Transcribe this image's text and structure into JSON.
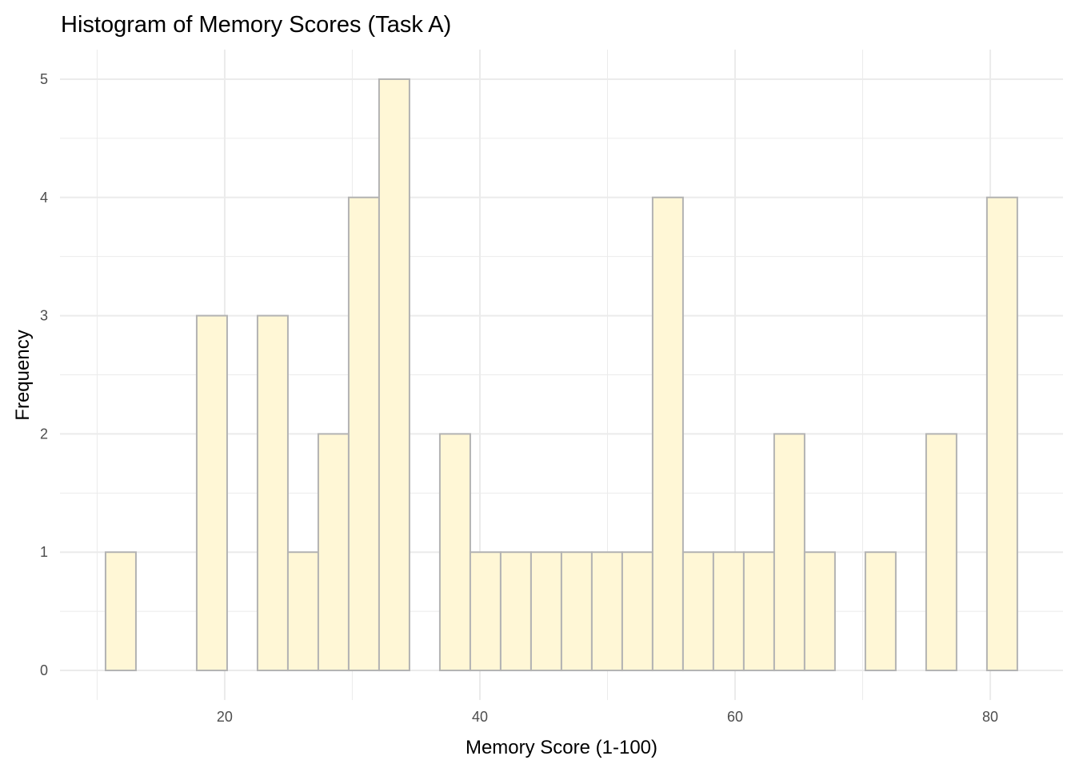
{
  "chart_data": {
    "type": "bar",
    "subtype": "histogram",
    "title": "Histogram of Memory Scores (Task A)",
    "xlabel": "Memory Score (1-100)",
    "ylabel": "Frequency",
    "bin_start": 10.66,
    "bin_width": 2.382,
    "counts": [
      1,
      0,
      0,
      3,
      0,
      3,
      1,
      2,
      4,
      5,
      0,
      2,
      1,
      1,
      1,
      1,
      1,
      1,
      4,
      1,
      1,
      1,
      2,
      1,
      0,
      1,
      0,
      2,
      0,
      4
    ],
    "xlim": [
      7.09,
      85.7
    ],
    "ylim": [
      -0.25,
      5.25
    ],
    "x_ticks": [
      20,
      40,
      60,
      80
    ],
    "x_tick_labels": [
      "20",
      "40",
      "60",
      "80"
    ],
    "y_ticks": [
      0,
      1,
      2,
      3,
      4,
      5
    ],
    "y_tick_labels": [
      "0",
      "1",
      "2",
      "3",
      "4",
      "5"
    ],
    "grid": true,
    "bar_fill": "#FFF7D6",
    "bar_stroke": "#B3B3B3",
    "grid_color": "#EBEBEB"
  }
}
